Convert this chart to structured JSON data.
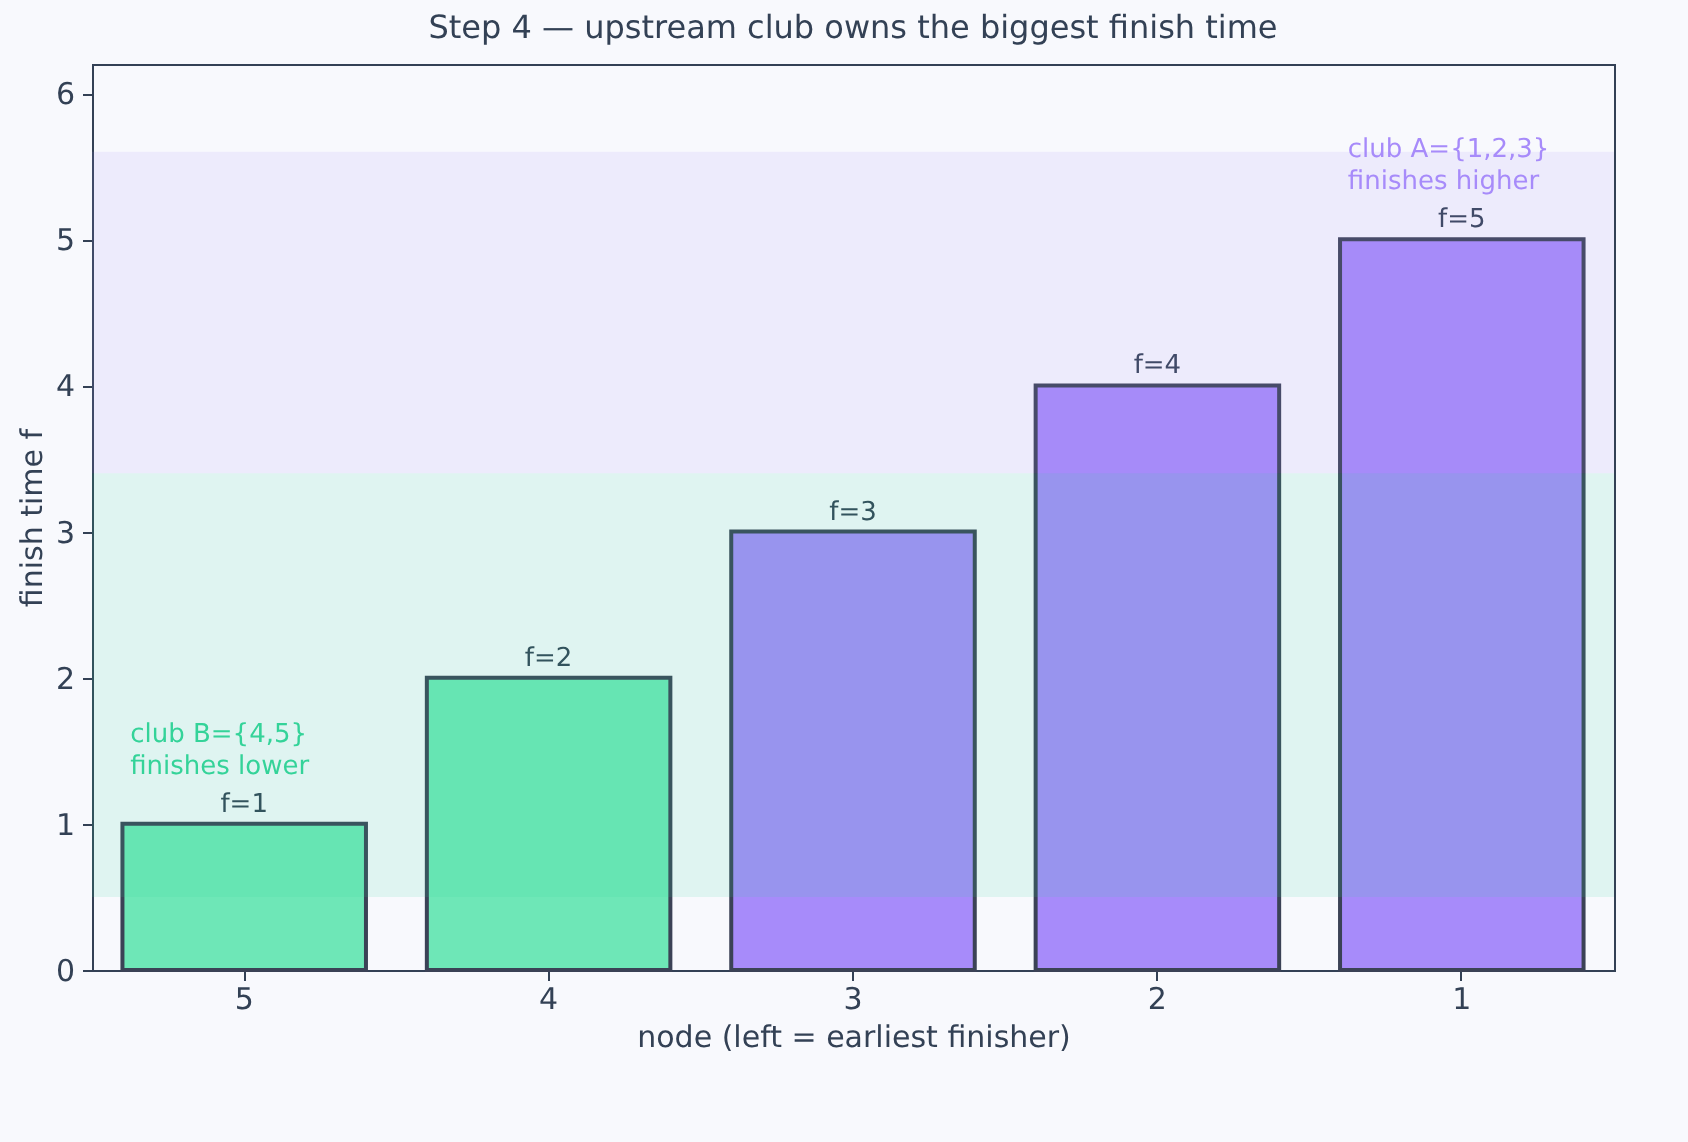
{
  "chart_data": {
    "type": "bar",
    "title": "Step 4 — upstream club owns the biggest finish time",
    "xlabel": "node (left = earliest finisher)",
    "ylabel": "finish time f",
    "categories": [
      "5",
      "4",
      "3",
      "2",
      "1"
    ],
    "values": [
      1,
      2,
      3,
      4,
      5
    ],
    "colors": [
      "#6ee7b7",
      "#6ee7b7",
      "#a78bfa",
      "#a78bfa",
      "#a78bfa"
    ],
    "value_labels": [
      "f=1",
      "f=2",
      "f=3",
      "f=4",
      "f=5"
    ],
    "ylim": [
      0,
      6.2
    ],
    "yticks": [
      0,
      1,
      2,
      3,
      4,
      5,
      6
    ],
    "grid": false,
    "bands": [
      {
        "axis": "y",
        "from": 0.5,
        "to": 3.4,
        "label": "club B={4,5}\nfinishes lower",
        "color": "#34d399"
      },
      {
        "axis": "y",
        "from": 3.4,
        "to": 5.6,
        "label": "club A={1,2,3}\nfinishes higher",
        "color": "#a78bfa"
      }
    ]
  }
}
